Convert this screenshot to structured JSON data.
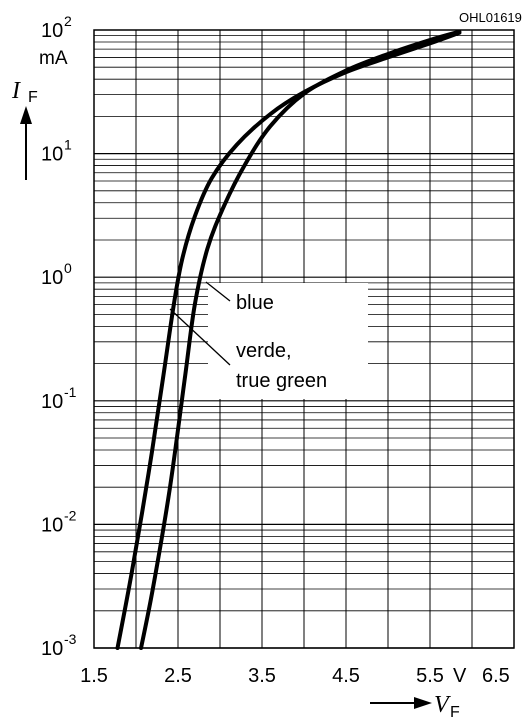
{
  "chart_data": {
    "type": "line",
    "figure_code": "OHL01619",
    "x_axis": {
      "symbol": "V",
      "subscript": "F",
      "unit": "V",
      "range": [
        1.5,
        6.5
      ],
      "tick_labels": [
        "1.5",
        "2.5",
        "3.5",
        "4.5",
        "5.5",
        "6.5"
      ],
      "tick_values": [
        1.5,
        2.5,
        3.5,
        4.5,
        5.5,
        6.5
      ],
      "major_step": 0.5
    },
    "y_axis": {
      "symbol": "I",
      "subscript": "F",
      "unit": "mA",
      "scale": "log",
      "range": [
        0.001,
        100
      ],
      "decades": [
        {
          "base": "10",
          "exp": "-3",
          "value": 0.001
        },
        {
          "base": "10",
          "exp": "-2",
          "value": 0.01
        },
        {
          "base": "10",
          "exp": "-1",
          "value": 0.1
        },
        {
          "base": "10",
          "exp": "0",
          "value": 1
        },
        {
          "base": "10",
          "exp": "1",
          "value": 10
        },
        {
          "base": "10",
          "exp": "2",
          "value": 100
        }
      ]
    },
    "grid": true,
    "series": [
      {
        "name": "blue",
        "points": [
          [
            1.78,
            0.001
          ],
          [
            1.95,
            0.0041
          ],
          [
            2.15,
            0.026
          ],
          [
            2.32,
            0.15
          ],
          [
            2.45,
            0.6
          ],
          [
            2.55,
            1.4
          ],
          [
            2.7,
            3.1
          ],
          [
            2.9,
            6.3
          ],
          [
            3.2,
            11.8
          ],
          [
            3.6,
            20.9
          ],
          [
            4.0,
            31.4
          ],
          [
            4.5,
            45.6
          ],
          [
            5.0,
            60
          ],
          [
            5.5,
            78
          ],
          [
            5.85,
            95
          ]
        ]
      },
      {
        "name": "verde, true green",
        "points": [
          [
            2.06,
            0.001
          ],
          [
            2.2,
            0.003
          ],
          [
            2.4,
            0.019
          ],
          [
            2.58,
            0.15
          ],
          [
            2.7,
            0.6
          ],
          [
            2.85,
            1.7
          ],
          [
            3.05,
            3.8
          ],
          [
            3.3,
            8.2
          ],
          [
            3.6,
            16.7
          ],
          [
            4.0,
            30.5
          ],
          [
            4.5,
            47
          ],
          [
            5.0,
            64
          ],
          [
            5.5,
            83
          ],
          [
            5.85,
            97
          ]
        ]
      }
    ],
    "legend": {
      "entries": [
        {
          "text": "blue",
          "series": "blue"
        },
        {
          "text_lines": [
            "verde,",
            "true green"
          ],
          "series": "verde, true green"
        }
      ]
    }
  }
}
